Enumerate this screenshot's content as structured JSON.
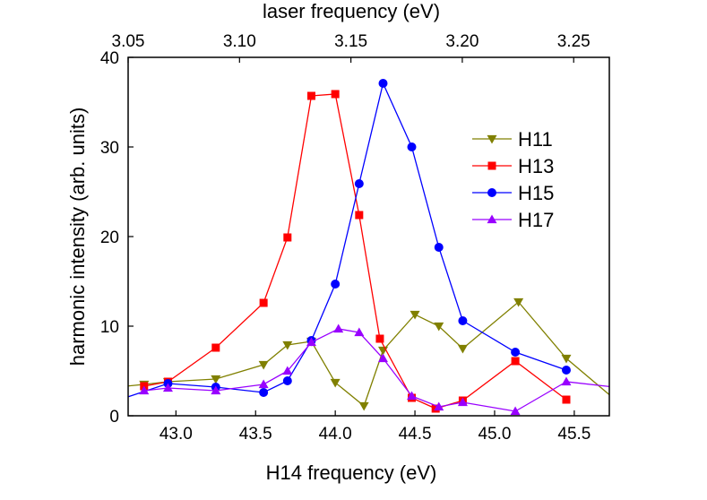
{
  "chart_data": {
    "type": "line",
    "title": "",
    "xlabel": "H14 frequency (eV)",
    "ylabel": "harmonic intensity (arb. units)",
    "x2label": "laser frequency (eV)",
    "xlim": [
      42.7,
      45.72
    ],
    "ylim": [
      0,
      40
    ],
    "x2lim": [
      3.05,
      3.266
    ],
    "xticks": [
      "43.0",
      "43.5",
      "44.0",
      "44.5",
      "45.0",
      "45.5"
    ],
    "xtick_values": [
      43.0,
      43.5,
      44.0,
      44.5,
      45.0,
      45.5
    ],
    "yticks": [
      "0",
      "10",
      "20",
      "30",
      "40"
    ],
    "ytick_values": [
      0,
      10,
      20,
      30,
      40
    ],
    "x2ticks": [
      "3.05",
      "3.10",
      "3.15",
      "3.20",
      "3.25"
    ],
    "x2tick_values": [
      3.05,
      3.1,
      3.15,
      3.2,
      3.25
    ],
    "grid": false,
    "legend_position": "upper-right",
    "series": [
      {
        "name": "H11",
        "color": "#808000",
        "marker": "triangle-down",
        "points": [
          [
            42.63,
            3.2
          ],
          [
            42.8,
            3.5
          ],
          [
            42.95,
            3.8
          ],
          [
            43.25,
            4.1
          ],
          [
            43.55,
            5.7
          ],
          [
            43.7,
            7.9
          ],
          [
            43.85,
            8.3
          ],
          [
            44.0,
            3.7
          ],
          [
            44.18,
            1.1
          ],
          [
            44.3,
            7.3
          ],
          [
            44.5,
            11.3
          ],
          [
            44.65,
            10.0
          ],
          [
            44.8,
            7.5
          ],
          [
            45.15,
            12.7
          ],
          [
            45.45,
            6.4
          ],
          [
            45.75,
            1.9
          ]
        ]
      },
      {
        "name": "H13",
        "color": "#ff0000",
        "marker": "square",
        "points": [
          [
            42.8,
            3.3
          ],
          [
            42.95,
            3.8
          ],
          [
            43.25,
            7.6
          ],
          [
            43.55,
            12.6
          ],
          [
            43.7,
            19.9
          ],
          [
            43.85,
            35.7
          ],
          [
            44.0,
            35.9
          ],
          [
            44.15,
            22.4
          ],
          [
            44.28,
            8.6
          ],
          [
            44.48,
            2.0
          ],
          [
            44.63,
            0.8
          ],
          [
            44.8,
            1.7
          ],
          [
            45.13,
            6.1
          ],
          [
            45.45,
            1.8
          ]
        ]
      },
      {
        "name": "H15",
        "color": "#0000ff",
        "marker": "circle",
        "points": [
          [
            42.63,
            1.7
          ],
          [
            42.95,
            3.6
          ],
          [
            43.25,
            3.2
          ],
          [
            43.55,
            2.6
          ],
          [
            43.7,
            3.9
          ],
          [
            43.85,
            8.4
          ],
          [
            44.0,
            14.7
          ],
          [
            44.15,
            25.9
          ],
          [
            44.3,
            37.1
          ],
          [
            44.48,
            30.0
          ],
          [
            44.65,
            18.8
          ],
          [
            44.8,
            10.6
          ],
          [
            45.13,
            7.1
          ],
          [
            45.45,
            5.1
          ]
        ]
      },
      {
        "name": "H17",
        "color": "#9900ff",
        "marker": "triangle-up",
        "points": [
          [
            42.8,
            2.8
          ],
          [
            42.95,
            3.1
          ],
          [
            43.25,
            2.8
          ],
          [
            43.55,
            3.5
          ],
          [
            43.7,
            5.0
          ],
          [
            43.85,
            8.2
          ],
          [
            44.02,
            9.7
          ],
          [
            44.15,
            9.3
          ],
          [
            44.3,
            6.4
          ],
          [
            44.48,
            2.2
          ],
          [
            44.65,
            1.0
          ],
          [
            44.8,
            1.5
          ],
          [
            45.13,
            0.5
          ],
          [
            45.45,
            3.8
          ],
          [
            45.75,
            3.2
          ]
        ]
      }
    ]
  }
}
